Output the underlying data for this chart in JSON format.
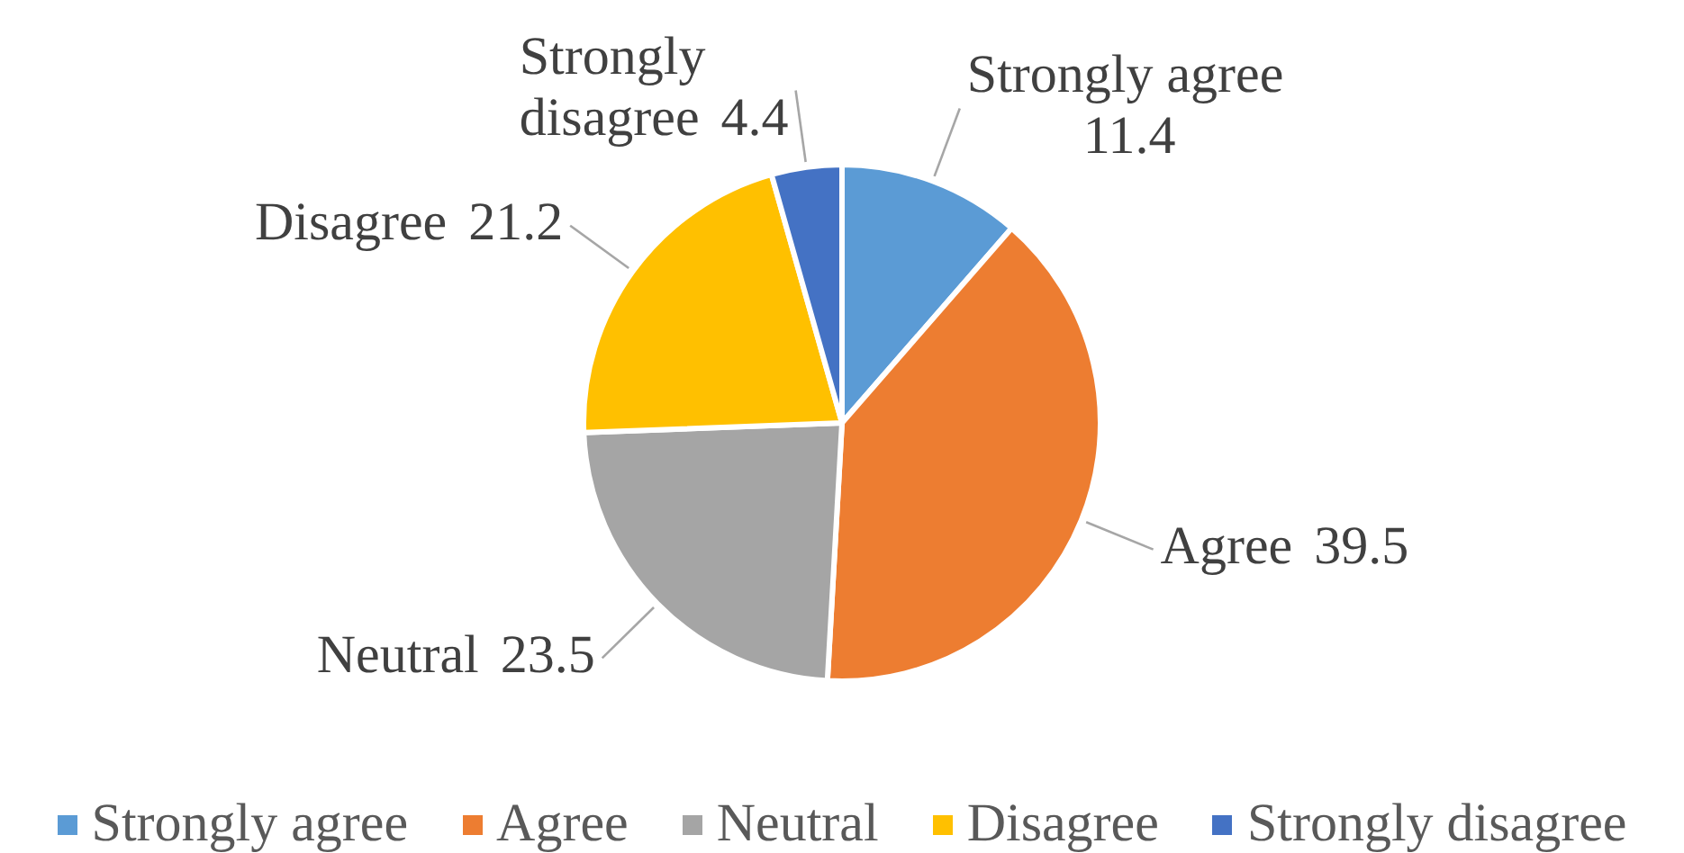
{
  "chart_data": {
    "type": "pie",
    "categories": [
      "Strongly agree",
      "Agree",
      "Neutral",
      "Disagree",
      "Strongly disagree"
    ],
    "values": [
      11.4,
      39.5,
      23.5,
      21.2,
      4.4
    ],
    "colors": [
      "#5b9bd5",
      "#ed7d31",
      "#a5a5a5",
      "#ffc000",
      "#4472c4"
    ],
    "data_labels": true,
    "legend": "bottom"
  }
}
